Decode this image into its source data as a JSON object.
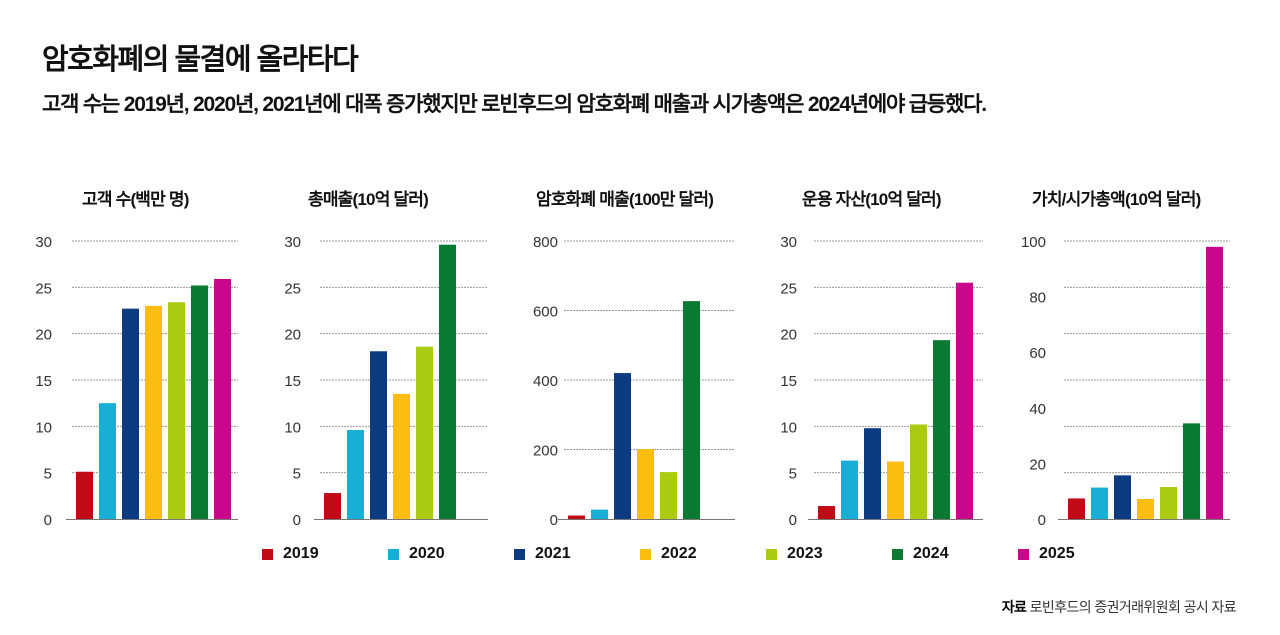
{
  "title": "암호화폐의 물결에 올라타다",
  "subtitle": "고객 수는 2019년, 2020년, 2021년에 대폭 증가했지만 로빈후드의 암호화폐 매출과 시가총액은 2024년에야 급등했다.",
  "legend": [
    {
      "label": "2019",
      "color": "#c00a16"
    },
    {
      "label": "2020",
      "color": "#17afd6"
    },
    {
      "label": "2021",
      "color": "#0c3b82"
    },
    {
      "label": "2022",
      "color": "#fbbd0f"
    },
    {
      "label": "2023",
      "color": "#a9cc13"
    },
    {
      "label": "2024",
      "color": "#0a7a30"
    },
    {
      "label": "2025",
      "color": "#c8078a"
    }
  ],
  "source": {
    "label": "자료",
    "text": "로빈후드의 증권거래위원회 공시 자료"
  },
  "chart_data": [
    {
      "type": "bar",
      "title": "고객 수(백만 명)",
      "categories": [
        "2019",
        "2020",
        "2021",
        "2022",
        "2023",
        "2024",
        "2025"
      ],
      "values": [
        5.1,
        12.5,
        22.7,
        23.0,
        23.4,
        25.2,
        25.9
      ],
      "ylim": [
        0,
        30
      ],
      "yticks": [
        "0",
        "5",
        "10",
        "15",
        "20",
        "25",
        "30"
      ],
      "grid": true
    },
    {
      "type": "bar",
      "title": "총매출(10억 달러)",
      "categories": [
        "2019",
        "2020",
        "2021",
        "2022",
        "2023",
        "2024"
      ],
      "values": [
        2.8,
        9.6,
        18.1,
        13.5,
        18.6,
        29.6
      ],
      "ylim": [
        0,
        30
      ],
      "yticks": [
        "0",
        "5",
        "10",
        "15",
        "20",
        "25",
        "30"
      ],
      "grid": true
    },
    {
      "type": "bar",
      "title": "암호화폐 매출(100만 달러)",
      "categories": [
        "2019",
        "2020",
        "2021",
        "2022",
        "2023",
        "2024"
      ],
      "values": [
        10,
        27,
        420,
        201,
        135,
        627
      ],
      "ylim": [
        0,
        800
      ],
      "yticks": [
        "0",
        "200",
        "400",
        "600",
        "800"
      ],
      "grid": true
    },
    {
      "type": "bar",
      "title": "운용 자산(10억 달러)",
      "categories": [
        "2019",
        "2020",
        "2021",
        "2022",
        "2023",
        "2024",
        "2025"
      ],
      "values": [
        1.4,
        6.3,
        9.8,
        6.2,
        10.2,
        19.3,
        25.5
      ],
      "ylim": [
        0,
        30
      ],
      "yticks": [
        "0",
        "5",
        "10",
        "15",
        "20",
        "25",
        "30"
      ],
      "grid": true
    },
    {
      "type": "bar",
      "title": "가치/시가총액(10억 달러)",
      "categories": [
        "2019",
        "2020",
        "2021",
        "2022",
        "2023",
        "2024",
        "2025"
      ],
      "values": [
        7.4,
        11.3,
        15.7,
        7.2,
        11.5,
        34.4,
        97.9
      ],
      "ylim": [
        0,
        100
      ],
      "yticks": [
        "0",
        "20",
        "40",
        "60",
        "80",
        "100"
      ],
      "grid": true
    }
  ]
}
